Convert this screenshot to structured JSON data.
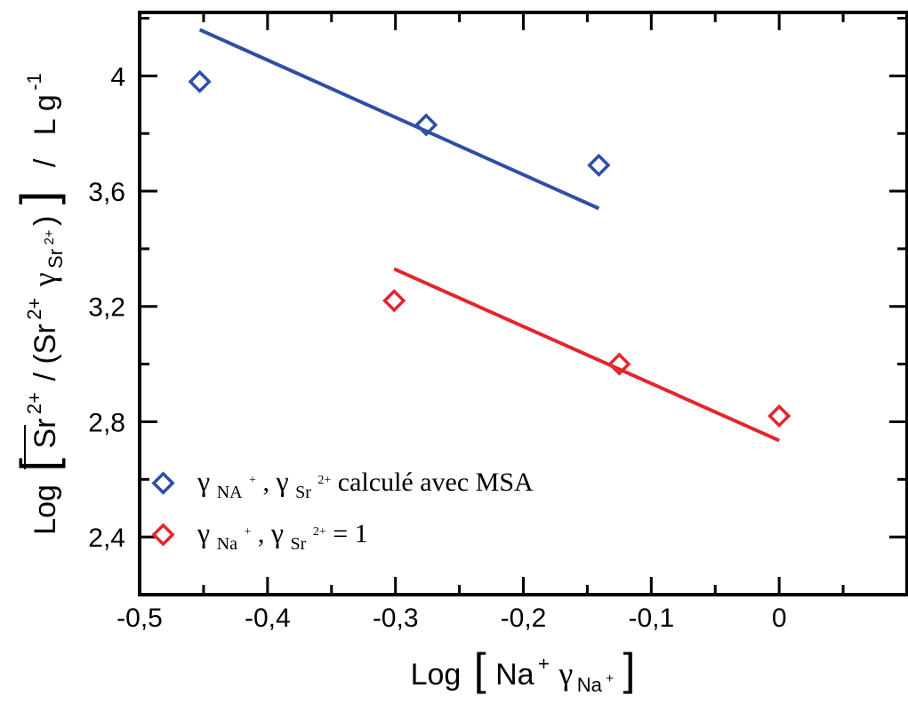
{
  "chart_data": {
    "type": "scatter",
    "xlim": [
      -0.5,
      0.1
    ],
    "ylim": [
      2.2,
      4.22
    ],
    "x_ticks": [
      -0.5,
      -0.4,
      -0.3,
      -0.2,
      -0.1,
      0
    ],
    "x_tick_labels": [
      "-0,5",
      "-0,4",
      "-0,3",
      "-0,2",
      "-0,1",
      "0"
    ],
    "y_ticks": [
      2.4,
      2.8,
      3.2,
      3.6,
      4.0
    ],
    "y_tick_labels": [
      "2,4",
      "2,8",
      "3,2",
      "3,6",
      "4"
    ],
    "xlabel": {
      "prefix": "Log",
      "open": "[",
      "main": "Na",
      "sup": "+",
      "gamma": "γ",
      "gamma_sub": "Na",
      "gamma_sub_sup": "+",
      "close": "]"
    },
    "ylabel": {
      "prefix": "Log",
      "open": "[",
      "sr_bar": "Sr",
      "sr_bar_sup": "2+",
      "middle": "/ (Sr",
      "sup2": "2+",
      "gamma": "γ",
      "gamma_sub": "Sr",
      "gamma_sub_sup": "2+",
      "close_paren": ")",
      "close": "]",
      "slash": "/",
      "unit": "L g",
      "unit_sup": "-1"
    },
    "series": [
      {
        "color": "#2f4fa5",
        "points": [
          {
            "x": -0.453,
            "y": 3.98
          },
          {
            "x": -0.276,
            "y": 3.83
          },
          {
            "x": -0.141,
            "y": 3.69
          }
        ],
        "fit": [
          [
            -0.453,
            4.16
          ],
          [
            -0.141,
            3.54
          ]
        ],
        "legend": {
          "g1": "γ",
          "g1_sub": "NA",
          "g1_sup": "+",
          "sep": ", ",
          "g2": "γ",
          "g2_sub": "Sr",
          "g2_sup": "2+",
          "tail": " calculé avec MSA"
        }
      },
      {
        "color": "#e3262c",
        "points": [
          {
            "x": -0.301,
            "y": 3.22
          },
          {
            "x": -0.125,
            "y": 3.0
          },
          {
            "x": 0.0,
            "y": 2.82
          }
        ],
        "fit": [
          [
            -0.301,
            3.33
          ],
          [
            0.0,
            2.735
          ]
        ],
        "legend": {
          "g1": "γ",
          "g1_sub": "Na",
          "g1_sup": "+",
          "sep": ", ",
          "g2": "γ",
          "g2_sub": "Sr",
          "g2_sup": "2+",
          "tail": " = 1"
        }
      }
    ]
  }
}
